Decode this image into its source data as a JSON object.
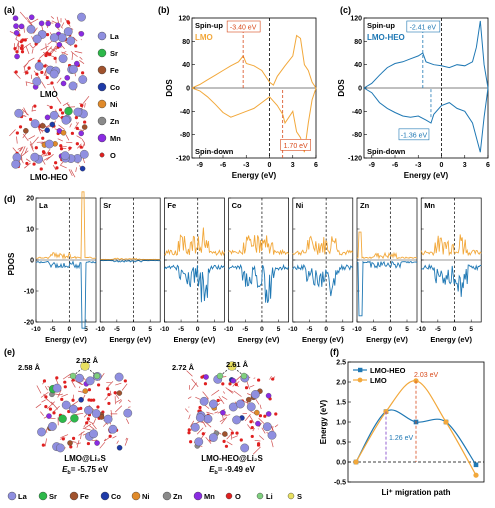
{
  "panels": {
    "a": {
      "label": "(a)",
      "legend": [
        "La",
        "Sr",
        "Fe",
        "Co",
        "Ni",
        "Zn",
        "Mn",
        "O"
      ],
      "caption_top": "LMO",
      "caption_bottom": "LMO-HEO",
      "colors": {
        "La": "#8f8fe0",
        "Sr": "#2db84a",
        "Fe": "#a0522d",
        "Co": "#1e3aa8",
        "Ni": "#e08a2a",
        "Zn": "#8a8a8a",
        "Mn": "#8a2be2",
        "O": "#e02020"
      }
    },
    "b": {
      "label": "(b)",
      "name": "LMO",
      "spin_up": "Spin-up",
      "spin_down": "Spin-down",
      "ylabel": "DOS",
      "xlabel": "Energy (eV)",
      "ann_up": "-3.40 eV",
      "ann_down": "1.70 eV",
      "xticks": [
        "-9",
        "-6",
        "-3",
        "0",
        "3",
        "6"
      ],
      "yticks": [
        "120",
        "80",
        "40",
        "0",
        "-40",
        "-80",
        "-120"
      ],
      "color": "#f2a83b"
    },
    "c": {
      "label": "(c)",
      "name": "LMO-HEO",
      "spin_up": "Spin-up",
      "spin_down": "Spin-down",
      "ylabel": "DOS",
      "xlabel": "Energy (eV)",
      "ann_up": "-2.41 eV",
      "ann_down": "-1.36 eV",
      "xticks": [
        "-9",
        "-6",
        "-3",
        "0",
        "3",
        "6"
      ],
      "yticks": [
        "120",
        "80",
        "40",
        "0",
        "-40",
        "-80",
        "-120"
      ],
      "color": "#1f78b4"
    },
    "d": {
      "label": "(d)",
      "ylabel": "PDOS",
      "xlabel": "Energy (eV)",
      "elements": [
        "La",
        "Sr",
        "Fe",
        "Co",
        "Ni",
        "Zn",
        "Mn"
      ],
      "xticks": [
        "-10",
        "-5",
        "0",
        "5"
      ],
      "yticks": [
        "20",
        "10",
        "0",
        "-10",
        "-20"
      ]
    },
    "e": {
      "label": "(e)",
      "left_label": "LMO@Li₂S",
      "left_eb": "= -5.75 eV",
      "right_label": "LMO-HEO@Li₂S",
      "right_eb": "= -9.49 eV",
      "eb_sym": "E",
      "eb_sub": "b",
      "left_d1": "2.58 Å",
      "left_d2": "2.52 Å",
      "right_d1": "2.72 Å",
      "right_d2": "2.61 Å",
      "legend": [
        "La",
        "Sr",
        "Fe",
        "Co",
        "Ni",
        "Zn",
        "Mn",
        "O",
        "Li",
        "S"
      ],
      "legend_colors": [
        "#8f8fe0",
        "#2db84a",
        "#a0522d",
        "#1e3aa8",
        "#e08a2a",
        "#8a8a8a",
        "#8a2be2",
        "#e02020",
        "#7fd07f",
        "#e8e060"
      ]
    },
    "f": {
      "label": "(f)",
      "ylabel": "Energy (eV)",
      "xlabel": "Li⁺ migration path",
      "legend": [
        "LMO-HEO",
        "LMO"
      ],
      "ann_heo": "1.26 eV",
      "ann_lmo": "2.03 eV",
      "yticks": [
        "2.5",
        "2.0",
        "1.5",
        "1.0",
        "0.5",
        "0.0",
        "-0.5"
      ],
      "colors": {
        "LMO-HEO": "#1f78b4",
        "LMO": "#f2a83b"
      }
    }
  },
  "chart_data": [
    {
      "type": "line",
      "title": "LMO",
      "xlabel": "Energy (eV)",
      "ylabel": "DOS",
      "xlim": [
        -10,
        6
      ],
      "ylim": [
        -120,
        120
      ],
      "series": [
        {
          "name": "Spin-up",
          "x": [
            -10,
            -9,
            -8,
            -7,
            -6,
            -5,
            -4,
            -3.4,
            -3,
            -2,
            -1,
            0,
            0.5,
            1,
            2,
            3,
            3.5,
            4,
            4.5,
            5,
            5.5,
            6
          ],
          "y": [
            0,
            6,
            14,
            22,
            30,
            38,
            45,
            55,
            42,
            38,
            30,
            10,
            5,
            20,
            38,
            55,
            90,
            85,
            40,
            30,
            10,
            0
          ]
        },
        {
          "name": "Spin-down",
          "x": [
            -10,
            -9,
            -8,
            -7,
            -6,
            -5,
            -4,
            -3,
            -2,
            -1,
            0,
            1,
            1.7,
            2,
            3,
            3.5,
            4,
            4.5,
            5,
            5.5,
            6
          ],
          "y": [
            0,
            -5,
            -15,
            -28,
            -42,
            -50,
            -45,
            -40,
            -35,
            -25,
            -15,
            -30,
            -45,
            -60,
            -40,
            -75,
            -85,
            -110,
            -60,
            -20,
            0
          ]
        }
      ]
    },
    {
      "type": "line",
      "title": "LMO-HEO",
      "xlabel": "Energy (eV)",
      "ylabel": "DOS",
      "xlim": [
        -10,
        6
      ],
      "ylim": [
        -120,
        120
      ],
      "series": [
        {
          "name": "Spin-up",
          "x": [
            -10,
            -9,
            -8,
            -7,
            -6,
            -5,
            -4,
            -3,
            -2.41,
            -2,
            -1,
            0,
            1,
            2,
            3,
            4,
            4.5,
            5,
            5.5,
            6
          ],
          "y": [
            0,
            8,
            22,
            35,
            42,
            45,
            50,
            55,
            60,
            45,
            40,
            38,
            35,
            40,
            38,
            45,
            70,
            115,
            40,
            0
          ]
        },
        {
          "name": "Spin-down",
          "x": [
            -10,
            -9,
            -8,
            -7,
            -6,
            -5,
            -4,
            -3,
            -2,
            -1.36,
            -1,
            0,
            1,
            2,
            3,
            4,
            4.5,
            5,
            5.5,
            6
          ],
          "y": [
            0,
            -8,
            -25,
            -35,
            -42,
            -48,
            -50,
            -48,
            -55,
            -60,
            -45,
            -30,
            -25,
            -35,
            -40,
            -60,
            -85,
            -110,
            -50,
            0
          ]
        }
      ]
    },
    {
      "type": "line",
      "title": "Li⁺ migration path",
      "ylabel": "Energy (eV)",
      "ylim": [
        -0.5,
        2.5
      ],
      "x": [
        1,
        2,
        3,
        4,
        5
      ],
      "series": [
        {
          "name": "LMO-HEO",
          "values": [
            0.0,
            1.26,
            1.0,
            1.0,
            -0.07
          ]
        },
        {
          "name": "LMO",
          "values": [
            0.0,
            1.26,
            2.03,
            1.0,
            -0.33
          ]
        }
      ]
    }
  ]
}
